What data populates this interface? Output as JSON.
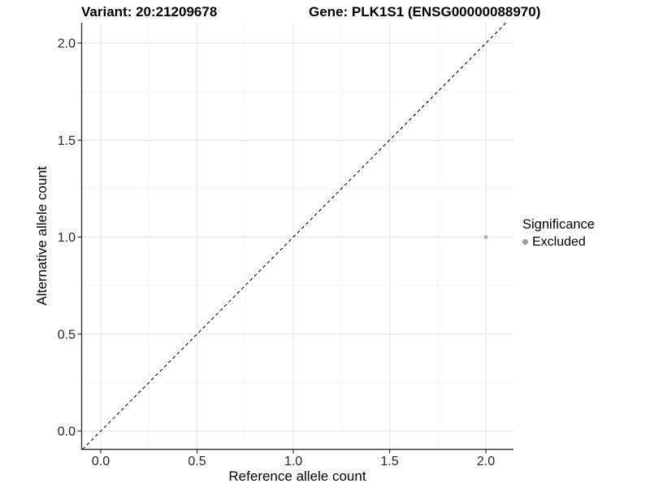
{
  "header": {
    "left_title": "Variant: 20:21209678",
    "right_title": "Gene: PLK1S1 (ENSG00000088970)"
  },
  "chart_data": {
    "type": "scatter",
    "title_left": "Variant: 20:21209678",
    "title_right": "Gene: PLK1S1 (ENSG00000088970)",
    "xlabel": "Reference allele count",
    "ylabel": "Alternative allele count",
    "xlim": [
      -0.0992,
      2.1435
    ],
    "ylim": [
      -0.0943,
      2.1049
    ],
    "x_ticks": [
      0.0,
      0.5,
      1.0,
      1.5,
      2.0
    ],
    "y_ticks": [
      0.0,
      0.5,
      1.0,
      1.5,
      2.0
    ],
    "x_tick_labels": [
      "0.0",
      "0.5",
      "1.0",
      "1.5",
      "2.0"
    ],
    "y_tick_labels": [
      "0.0",
      "0.5",
      "1.0",
      "1.5",
      "2.0"
    ],
    "x_minor_ticks": [
      0.25,
      0.75,
      1.25,
      1.75
    ],
    "y_minor_ticks": [
      0.25,
      0.75,
      1.25,
      1.75
    ],
    "grid": true,
    "legend_position": "right",
    "series": [
      {
        "name": "Excluded",
        "color": "#a8a8a8",
        "marker": "circle",
        "points": [
          {
            "x": 2.0,
            "y": 1.0
          }
        ]
      }
    ],
    "reference_line": {
      "type": "identity",
      "equation": "y = x",
      "style": "dashed",
      "color": "#1a1a1a",
      "from": -0.0943,
      "to": 2.1049
    },
    "colors": {
      "grid_major": "#e8e8e8",
      "grid_minor": "#f4f4f4",
      "axis_line": "#333333",
      "tick_mark": "#333333",
      "tick_label": "#262626",
      "panel_background": "#ffffff"
    }
  },
  "legend": {
    "title": "Significance",
    "items": [
      {
        "label": "Excluded",
        "color": "#9e9e9e"
      }
    ]
  }
}
